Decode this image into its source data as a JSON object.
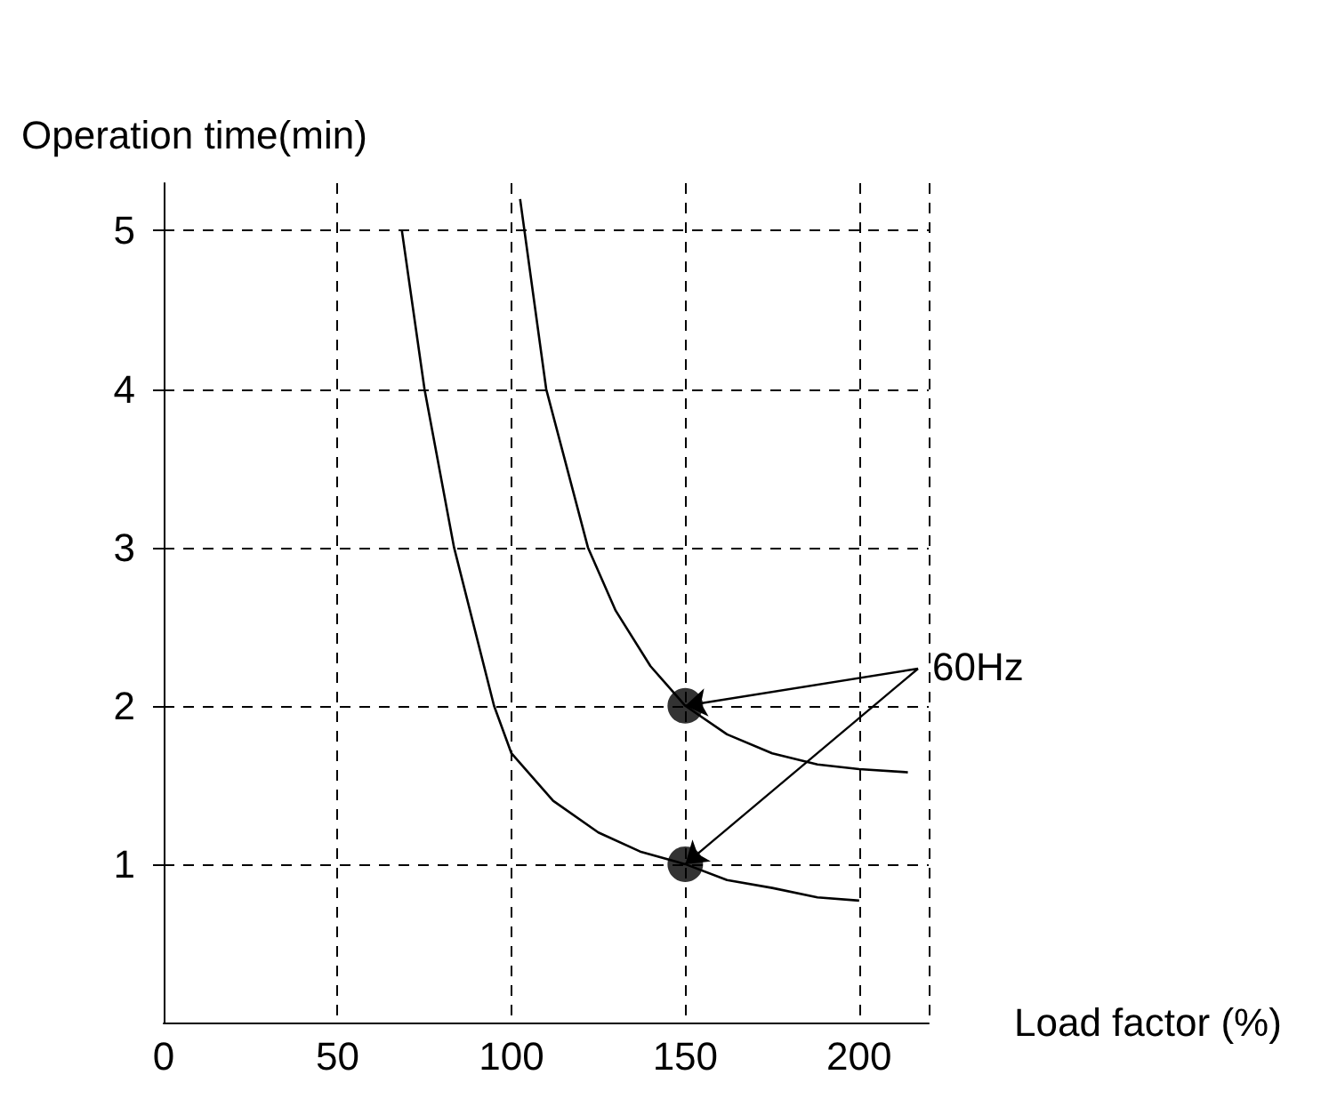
{
  "chart_data": {
    "type": "line",
    "xlabel": "Load factor (%)",
    "ylabel": "Operation time(min)",
    "series": [
      {
        "color": "#000000",
        "x": [
          68.5,
          75,
          83.5,
          95,
          100,
          112,
          125,
          137,
          150,
          162,
          175,
          188,
          200
        ],
        "values": [
          5.0,
          4.0,
          3.0,
          2.0,
          1.7,
          1.4,
          1.2,
          1.08,
          1.0,
          0.9,
          0.85,
          0.79,
          0.77
        ]
      },
      {
        "color": "#000000",
        "x": [
          102.5,
          110,
          116,
          122,
          130,
          140,
          150,
          162,
          175,
          188,
          200,
          214
        ],
        "values": [
          5.2,
          4.0,
          3.5,
          3.0,
          2.6,
          2.25,
          2.0,
          1.82,
          1.7,
          1.63,
          1.6,
          1.58
        ]
      },
      {
        "type": "scatter",
        "color": "#000000",
        "marker": "circle",
        "x": [
          150,
          150
        ],
        "values": [
          2,
          1
        ]
      }
    ],
    "xlim": [
      0,
      220
    ],
    "xticks": [
      0,
      50,
      100,
      150,
      200
    ],
    "ylim": [
      0,
      5.3
    ],
    "yticks": [
      1,
      2,
      3,
      4,
      5
    ],
    "grid": true,
    "line_style": "solid",
    "annotations": [
      {
        "text": "60Hz",
        "x": 150,
        "y": 2
      }
    ]
  }
}
